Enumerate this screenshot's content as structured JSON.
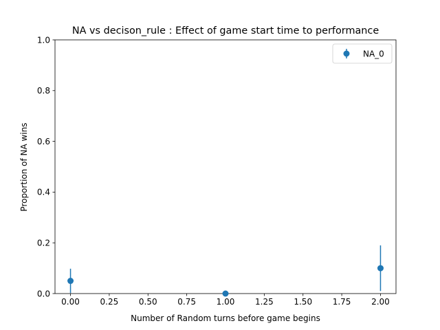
{
  "chart_data": {
    "type": "scatter",
    "title": "NA vs decison_rule : Effect of game start time to performance",
    "xlabel": "Number of Random turns before game begins",
    "ylabel": "Proportion of NA wins",
    "xlim": [
      -0.1,
      2.1
    ],
    "ylim": [
      0,
      1
    ],
    "x_ticks": [
      0.0,
      0.25,
      0.5,
      0.75,
      1.0,
      1.25,
      1.5,
      1.75,
      2.0
    ],
    "x_tick_labels": [
      "0.00",
      "0.25",
      "0.50",
      "0.75",
      "1.00",
      "1.25",
      "1.50",
      "1.75",
      "2.00"
    ],
    "y_ticks": [
      0.0,
      0.2,
      0.4,
      0.6,
      0.8,
      1.0
    ],
    "y_tick_labels": [
      "0.0",
      "0.2",
      "0.4",
      "0.6",
      "0.8",
      "1.0"
    ],
    "grid": false,
    "legend": {
      "placement": "top-right",
      "entries": [
        "NA_0"
      ]
    },
    "series": [
      {
        "name": "NA_0",
        "color": "#1f77b4",
        "marker": "circle",
        "x": [
          0,
          1,
          2
        ],
        "y": [
          0.05,
          0.0,
          0.1
        ],
        "yerr": [
          0.048,
          0.0,
          0.09
        ]
      }
    ]
  }
}
